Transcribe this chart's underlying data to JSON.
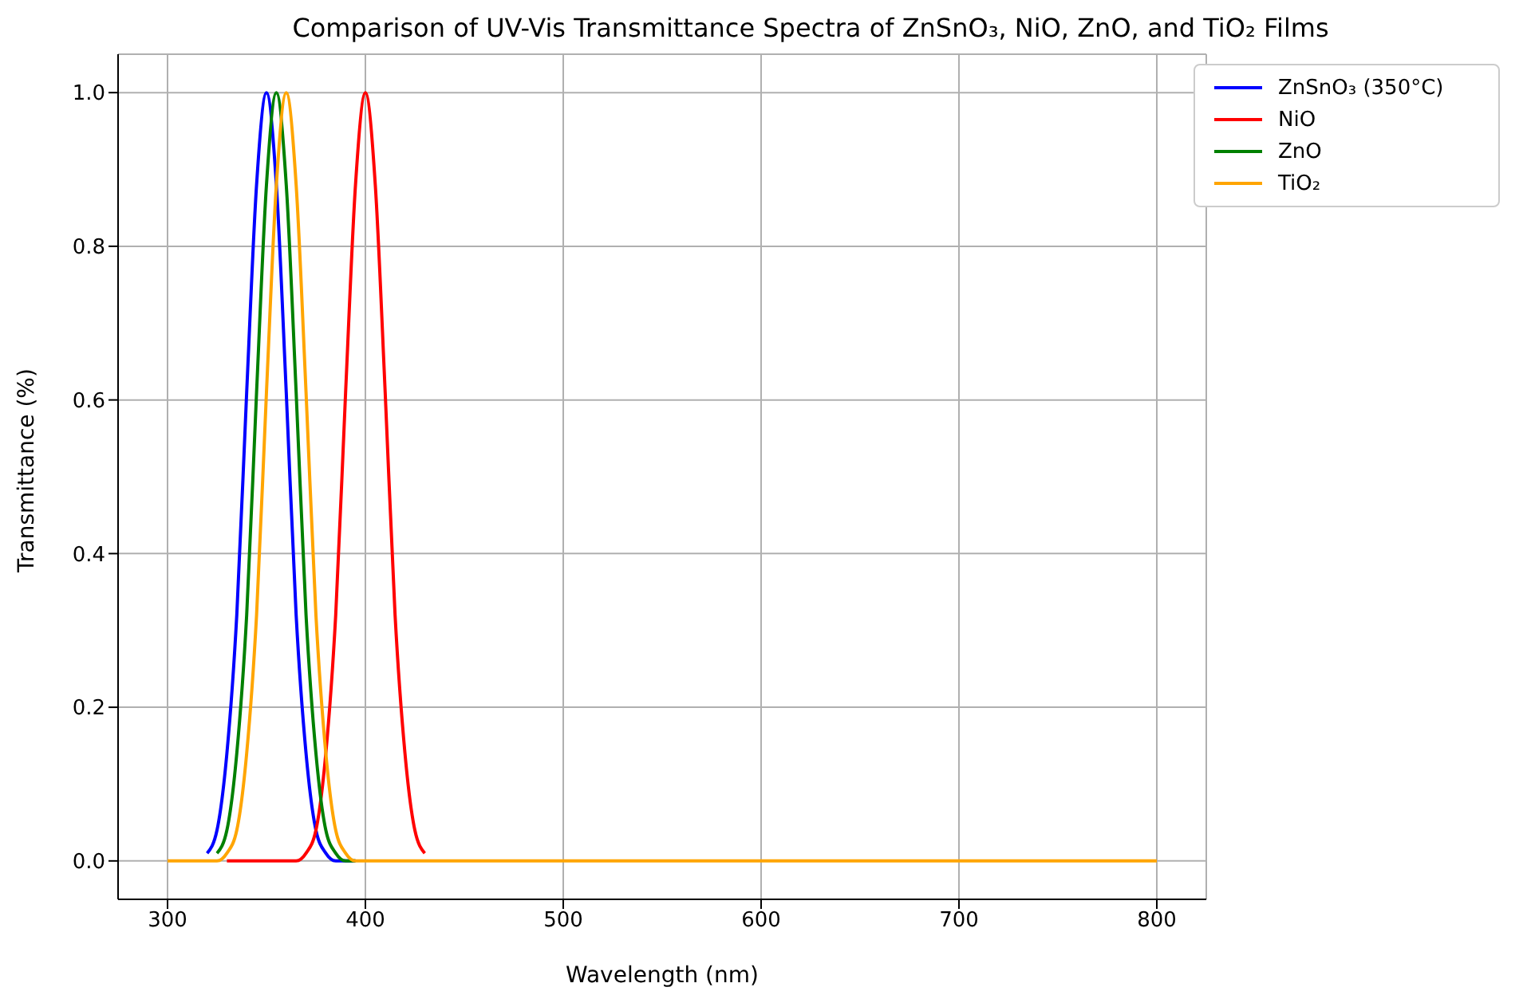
{
  "chart_data": {
    "type": "line",
    "title": "Comparison of UV-Vis Transmittance Spectra of ZnSnO₃, NiO, ZnO, and TiO₂ Films",
    "xlabel": "Wavelength (nm)",
    "ylabel": "Transmittance (%)",
    "x": [
      300,
      305,
      310,
      315,
      320,
      325,
      330,
      335,
      340,
      345,
      350,
      355,
      360,
      365,
      370,
      375,
      380,
      385,
      390,
      395,
      400,
      405,
      410,
      415,
      420,
      425,
      430,
      435,
      440,
      800
    ],
    "series": [
      {
        "name": "ZnSnO₃ (350°C)",
        "color": "#0000ff",
        "values": [
          null,
          null,
          null,
          null,
          0.01,
          0.04,
          0.14,
          0.32,
          0.61,
          0.88,
          1,
          0.88,
          0.61,
          0.32,
          0.14,
          0.04,
          0.01,
          0,
          0,
          0,
          null,
          null,
          null,
          null,
          null,
          null,
          null,
          null,
          null,
          null
        ]
      },
      {
        "name": "NiO",
        "color": "#ff0000",
        "values": [
          null,
          null,
          null,
          null,
          null,
          null,
          0,
          0,
          0,
          0,
          0,
          0,
          0,
          0,
          0.01,
          0.04,
          0.14,
          0.32,
          0.61,
          0.88,
          1,
          0.88,
          0.61,
          0.32,
          0.14,
          0.04,
          0.01,
          null,
          null,
          null
        ]
      },
      {
        "name": "ZnO",
        "color": "#008000",
        "values": [
          null,
          null,
          null,
          null,
          null,
          0.01,
          0.04,
          0.14,
          0.32,
          0.61,
          0.88,
          1,
          0.88,
          0.61,
          0.32,
          0.14,
          0.04,
          0.01,
          0,
          0,
          null,
          null,
          null,
          null,
          null,
          null,
          null,
          null,
          null,
          null
        ]
      },
      {
        "name": "TiO₂",
        "color": "#ffa500",
        "values": [
          0,
          0,
          0,
          0,
          0,
          0,
          0.01,
          0.04,
          0.14,
          0.32,
          0.61,
          0.88,
          1,
          0.88,
          0.61,
          0.32,
          0.14,
          0.04,
          0.01,
          0,
          0,
          0,
          0,
          0,
          0,
          0,
          0,
          0,
          0,
          0
        ]
      }
    ],
    "xlim": [
      275,
      825
    ],
    "xticks": [
      300,
      400,
      500,
      600,
      700,
      800
    ],
    "ylim": [
      -0.05,
      1.05
    ],
    "yticks": [
      {
        "value": 0,
        "label": "0.0"
      },
      {
        "value": 0.2,
        "label": "0.2"
      },
      {
        "value": 0.4,
        "label": "0.4"
      },
      {
        "value": 0.6,
        "label": "0.6"
      },
      {
        "value": 0.8,
        "label": "0.8"
      },
      {
        "value": 1,
        "label": "1.0"
      }
    ],
    "grid": true,
    "legend": "top right"
  }
}
